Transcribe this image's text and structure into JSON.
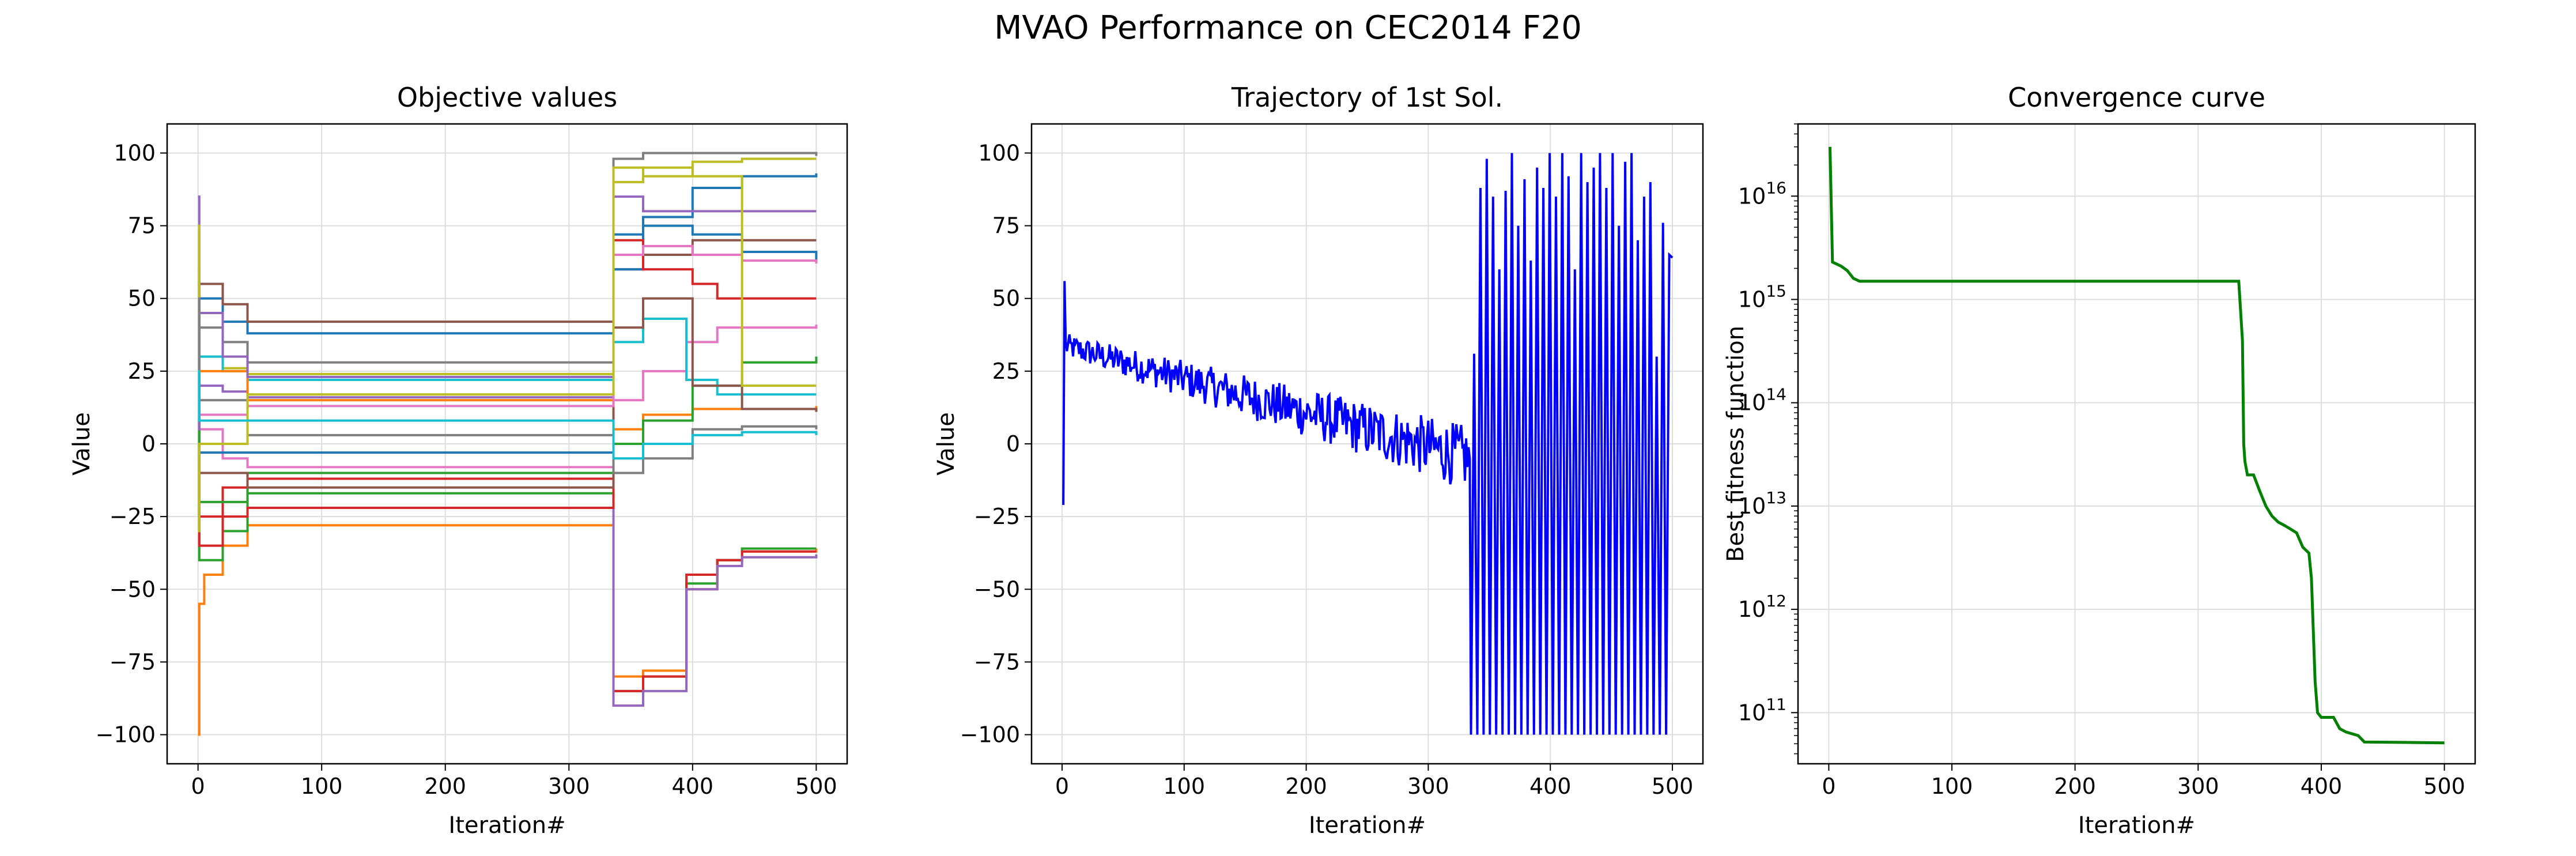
{
  "figure": {
    "title": "MVAO Performance on CEC2014 F20"
  },
  "colors": {
    "tab10": [
      "#1f77b4",
      "#ff7f0e",
      "#2ca02c",
      "#d62728",
      "#9467bd",
      "#8c564b",
      "#e377c2",
      "#7f7f7f",
      "#bcbd22",
      "#17becf"
    ],
    "trajectory": "#0000ff",
    "convergence": "#008000",
    "grid": "#dddddd"
  },
  "chart_data": [
    {
      "type": "line",
      "title": "Objective values",
      "xlabel": "Iteration#",
      "ylabel": "Value",
      "xlim": [
        -25,
        525
      ],
      "ylim": [
        -110,
        110
      ],
      "xticks": [
        0,
        100,
        200,
        300,
        400,
        500
      ],
      "yticks": [
        -100,
        -75,
        -50,
        -25,
        0,
        25,
        50,
        75,
        100
      ],
      "grid": true,
      "series": [
        {
          "points": [
            [
              0,
              0
            ],
            [
              1,
              50
            ],
            [
              20,
              42
            ],
            [
              40,
              38
            ],
            [
              334,
              38
            ],
            [
              336,
              72
            ],
            [
              360,
              78
            ],
            [
              400,
              88
            ],
            [
              440,
              92
            ],
            [
              500,
              93
            ]
          ]
        },
        {
          "points": [
            [
              0,
              -100
            ],
            [
              1,
              -55
            ],
            [
              5,
              -45
            ],
            [
              20,
              -35
            ],
            [
              40,
              -28
            ],
            [
              334,
              -28
            ],
            [
              336,
              -80
            ],
            [
              360,
              -78
            ],
            [
              395,
              -50
            ],
            [
              420,
              -40
            ],
            [
              440,
              -37
            ],
            [
              500,
              -36
            ]
          ]
        },
        {
          "points": [
            [
              0,
              0
            ],
            [
              1,
              -40
            ],
            [
              20,
              -30
            ],
            [
              40,
              -17
            ],
            [
              334,
              -17
            ],
            [
              336,
              -85
            ],
            [
              360,
              -80
            ],
            [
              395,
              -48
            ],
            [
              420,
              -40
            ],
            [
              440,
              -36
            ],
            [
              500,
              -36
            ]
          ]
        },
        {
          "points": [
            [
              0,
              20
            ],
            [
              1,
              -25
            ],
            [
              20,
              -15
            ],
            [
              40,
              -12
            ],
            [
              334,
              -12
            ],
            [
              336,
              -85
            ],
            [
              360,
              -80
            ],
            [
              395,
              -45
            ],
            [
              420,
              -40
            ],
            [
              440,
              -37
            ],
            [
              500,
              -37
            ]
          ]
        },
        {
          "points": [
            [
              0,
              85
            ],
            [
              1,
              20
            ],
            [
              20,
              18
            ],
            [
              40,
              16
            ],
            [
              334,
              16
            ],
            [
              336,
              -90
            ],
            [
              360,
              -85
            ],
            [
              395,
              -50
            ],
            [
              420,
              -42
            ],
            [
              440,
              -39
            ],
            [
              500,
              -38
            ]
          ]
        },
        {
          "points": [
            [
              0,
              30
            ],
            [
              1,
              55
            ],
            [
              20,
              48
            ],
            [
              40,
              42
            ],
            [
              334,
              42
            ],
            [
              336,
              60
            ],
            [
              360,
              65
            ],
            [
              400,
              70
            ],
            [
              440,
              70
            ],
            [
              500,
              70
            ]
          ]
        },
        {
          "points": [
            [
              0,
              10
            ],
            [
              1,
              5
            ],
            [
              20,
              -5
            ],
            [
              40,
              -8
            ],
            [
              334,
              -8
            ],
            [
              336,
              15
            ],
            [
              360,
              25
            ],
            [
              395,
              35
            ],
            [
              420,
              40
            ],
            [
              500,
              41
            ]
          ]
        },
        {
          "points": [
            [
              0,
              60
            ],
            [
              1,
              40
            ],
            [
              20,
              35
            ],
            [
              40,
              28
            ],
            [
              334,
              28
            ],
            [
              336,
              98
            ],
            [
              360,
              100
            ],
            [
              400,
              100
            ],
            [
              440,
              100
            ],
            [
              500,
              99
            ]
          ]
        },
        {
          "points": [
            [
              0,
              75
            ],
            [
              1,
              30
            ],
            [
              20,
              26
            ],
            [
              40,
              24
            ],
            [
              334,
              24
            ],
            [
              336,
              95
            ],
            [
              360,
              92
            ],
            [
              400,
              97
            ],
            [
              440,
              98
            ],
            [
              500,
              98
            ]
          ]
        },
        {
          "points": [
            [
              0,
              -20
            ],
            [
              1,
              30
            ],
            [
              20,
              25
            ],
            [
              40,
              22
            ],
            [
              334,
              22
            ],
            [
              336,
              35
            ],
            [
              360,
              43
            ],
            [
              395,
              22
            ],
            [
              420,
              17
            ],
            [
              500,
              17
            ]
          ]
        },
        {
          "points": [
            [
              0,
              -25
            ],
            [
              1,
              -3
            ],
            [
              40,
              -3
            ],
            [
              334,
              -3
            ],
            [
              336,
              60
            ],
            [
              360,
              75
            ],
            [
              400,
              72
            ],
            [
              440,
              66
            ],
            [
              500,
              63
            ]
          ]
        },
        {
          "points": [
            [
              0,
              0
            ],
            [
              1,
              25
            ],
            [
              40,
              15
            ],
            [
              334,
              15
            ],
            [
              336,
              5
            ],
            [
              360,
              10
            ],
            [
              400,
              12
            ],
            [
              500,
              13
            ]
          ]
        },
        {
          "points": [
            [
              0,
              15
            ],
            [
              1,
              -20
            ],
            [
              40,
              -10
            ],
            [
              334,
              -10
            ],
            [
              336,
              0
            ],
            [
              360,
              8
            ],
            [
              400,
              20
            ],
            [
              440,
              28
            ],
            [
              500,
              30
            ]
          ]
        },
        {
          "points": [
            [
              0,
              -5
            ],
            [
              1,
              -35
            ],
            [
              20,
              -25
            ],
            [
              40,
              -22
            ],
            [
              334,
              -22
            ],
            [
              336,
              70
            ],
            [
              360,
              60
            ],
            [
              400,
              55
            ],
            [
              420,
              50
            ],
            [
              500,
              50
            ]
          ]
        },
        {
          "points": [
            [
              0,
              5
            ],
            [
              1,
              45
            ],
            [
              20,
              30
            ],
            [
              40,
              23
            ],
            [
              334,
              23
            ],
            [
              336,
              85
            ],
            [
              360,
              80
            ],
            [
              400,
              80
            ],
            [
              500,
              80
            ]
          ]
        },
        {
          "points": [
            [
              0,
              -10
            ],
            [
              1,
              -10
            ],
            [
              40,
              -15
            ],
            [
              334,
              -15
            ],
            [
              336,
              40
            ],
            [
              360,
              50
            ],
            [
              400,
              20
            ],
            [
              440,
              12
            ],
            [
              500,
              11
            ]
          ]
        },
        {
          "points": [
            [
              0,
              40
            ],
            [
              1,
              10
            ],
            [
              40,
              13
            ],
            [
              334,
              13
            ],
            [
              336,
              65
            ],
            [
              360,
              68
            ],
            [
              400,
              65
            ],
            [
              440,
              63
            ],
            [
              500,
              62
            ]
          ]
        },
        {
          "points": [
            [
              0,
              50
            ],
            [
              1,
              15
            ],
            [
              40,
              3
            ],
            [
              334,
              3
            ],
            [
              336,
              -10
            ],
            [
              360,
              -5
            ],
            [
              400,
              5
            ],
            [
              440,
              6
            ],
            [
              500,
              5
            ]
          ]
        },
        {
          "points": [
            [
              0,
              -30
            ],
            [
              1,
              0
            ],
            [
              40,
              17
            ],
            [
              334,
              17
            ],
            [
              336,
              90
            ],
            [
              360,
              95
            ],
            [
              400,
              92
            ],
            [
              440,
              20
            ],
            [
              500,
              20
            ]
          ]
        },
        {
          "points": [
            [
              0,
              25
            ],
            [
              1,
              8
            ],
            [
              40,
              8
            ],
            [
              334,
              8
            ],
            [
              336,
              -5
            ],
            [
              360,
              0
            ],
            [
              400,
              3
            ],
            [
              440,
              4
            ],
            [
              500,
              3
            ]
          ]
        }
      ]
    },
    {
      "type": "line",
      "title": "Trajectory of 1st Sol.",
      "xlabel": "Iteration#",
      "ylabel": "Value",
      "xlim": [
        -25,
        525
      ],
      "ylim": [
        -110,
        110
      ],
      "xticks": [
        0,
        100,
        200,
        300,
        400,
        500
      ],
      "yticks": [
        -100,
        -75,
        -50,
        -25,
        0,
        25,
        50,
        75,
        100
      ],
      "grid": true,
      "series": [
        {
          "phase1": {
            "start": 0,
            "end": 334,
            "first_value": -21,
            "peak_value": 56,
            "start_trend": 34,
            "end_trend": -5,
            "noise": 7
          },
          "phase2": {
            "start": 335,
            "end": 500,
            "values": [
              -100,
              31,
              -100,
              88,
              -100,
              98,
              -100,
              85,
              -100,
              60,
              -100,
              87,
              -100,
              100,
              -100,
              75,
              -100,
              91,
              -100,
              63,
              -100,
              95,
              -100,
              88,
              -100,
              100,
              -100,
              85,
              -100,
              100,
              -100,
              92,
              -100,
              60,
              -100,
              100,
              -100,
              90,
              -100,
              95,
              -100,
              100,
              -100,
              88,
              -100,
              100,
              -100,
              75,
              -100,
              97,
              -100,
              100,
              -100,
              70,
              -100,
              85,
              -100,
              90,
              -100,
              30,
              -100,
              76,
              -100,
              65,
              64
            ]
          }
        }
      ]
    },
    {
      "type": "line",
      "title": "Convergence curve",
      "xlabel": "Iteration#",
      "ylabel": "Best fitness function",
      "yscale": "log",
      "xlim": [
        -25,
        525
      ],
      "ylim": [
        32000000000.0,
        5e+16
      ],
      "xticks": [
        0,
        100,
        200,
        300,
        400,
        500
      ],
      "ytick_exponents": [
        11,
        12,
        13,
        14,
        15,
        16
      ],
      "grid": true,
      "series": [
        {
          "points": [
            [
              1,
              3e+16
            ],
            [
              3,
              2300000000000000.0
            ],
            [
              10,
              2100000000000000.0
            ],
            [
              15,
              1900000000000000.0
            ],
            [
              20,
              1600000000000000.0
            ],
            [
              25,
              1500000000000000.0
            ],
            [
              333,
              1500000000000000.0
            ],
            [
              336,
              400000000000000.0
            ],
            [
              337,
              40000000000000.0
            ],
            [
              338,
              27000000000000.0
            ],
            [
              340,
              20000000000000.0
            ],
            [
              345,
              20000000000000.0
            ],
            [
              350,
              14000000000000.0
            ],
            [
              355,
              10000000000000.0
            ],
            [
              360,
              8000000000000.0
            ],
            [
              365,
              7000000000000.0
            ],
            [
              370,
              6500000000000.0
            ],
            [
              375,
              6000000000000.0
            ],
            [
              380,
              5500000000000.0
            ],
            [
              385,
              4000000000000.0
            ],
            [
              390,
              3500000000000.0
            ],
            [
              392,
              2000000000000.0
            ],
            [
              395,
              200000000000.0
            ],
            [
              397,
              100000000000.0
            ],
            [
              400,
              90000000000.0
            ],
            [
              410,
              90000000000.0
            ],
            [
              415,
              70000000000.0
            ],
            [
              420,
              65000000000.0
            ],
            [
              430,
              60000000000.0
            ],
            [
              435,
              52000000000.0
            ],
            [
              500,
              51000000000.0
            ]
          ]
        }
      ]
    }
  ]
}
